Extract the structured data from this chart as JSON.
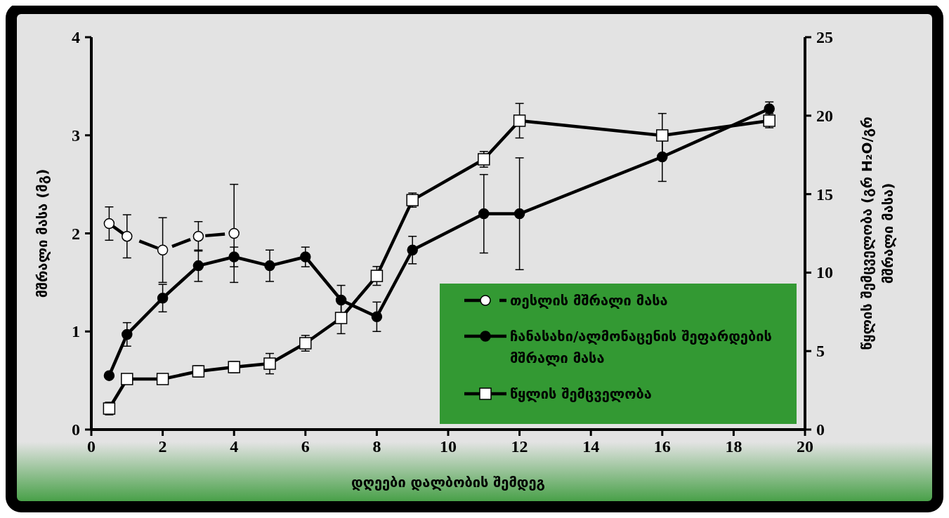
{
  "chart_data": {
    "type": "line",
    "xlabel": "დღეები დალბობის შემდეგ",
    "ylabel": "მშრალი მასა (მგ)",
    "y2label": "წყლის შემცველობა (გრ H₂O/გრ მშრალი მასა)",
    "xlim": [
      0,
      20
    ],
    "xticks": [
      0,
      2,
      4,
      6,
      8,
      10,
      12,
      14,
      16,
      18,
      20
    ],
    "ylim": [
      0,
      4
    ],
    "yticks": [
      0,
      1,
      2,
      3,
      4
    ],
    "y2lim": [
      0,
      25
    ],
    "y2ticks": [
      0,
      5,
      10,
      15,
      20,
      25
    ],
    "grid": false,
    "legend": "bottom right",
    "series": [
      {
        "name": "თესლის მშრალი მასა",
        "color": "#ffffff",
        "marker": "circle",
        "line_style": "dashed",
        "x": [
          0.5,
          1,
          2,
          3,
          4
        ],
        "values": [
          2.1,
          1.97,
          1.83,
          1.97,
          2.0
        ],
        "errors": [
          0.17,
          0.22,
          0.33,
          0.15,
          0.5
        ]
      },
      {
        "name": "ჩანასახი/ალმონაცენის შეფარდების მშრალი მასა",
        "color": "#000000",
        "marker": "circle",
        "line_style": "solid",
        "x": [
          0.5,
          1,
          2,
          3,
          4,
          5,
          6,
          7,
          8,
          9,
          11,
          12,
          16,
          19
        ],
        "values": [
          0.55,
          0.97,
          1.34,
          1.67,
          1.76,
          1.67,
          1.76,
          1.32,
          1.15,
          1.83,
          2.2,
          2.2,
          2.78,
          3.27
        ],
        "errors": [
          null,
          0.12,
          0.14,
          0.16,
          0.1,
          0.16,
          0.1,
          0.15,
          0.15,
          0.14,
          0.4,
          0.57,
          0.25,
          0.07
        ]
      },
      {
        "name": "წყლის შემცველობა",
        "color": "#ffffff",
        "marker": "square",
        "line_style": "solid",
        "axis": "y2",
        "x": [
          0.5,
          1,
          2,
          3,
          4,
          5,
          6,
          7,
          8,
          9,
          11,
          12,
          16,
          19
        ],
        "values": [
          1.34,
          3.22,
          3.22,
          3.71,
          3.98,
          4.2,
          5.5,
          7.11,
          9.79,
          14.62,
          17.22,
          19.68,
          18.74,
          19.68
        ],
        "errors": [
          0.4,
          null,
          null,
          0.35,
          0.35,
          0.65,
          0.5,
          1.0,
          0.6,
          0.45,
          0.5,
          1.1,
          1.4,
          0.45
        ]
      }
    ]
  }
}
